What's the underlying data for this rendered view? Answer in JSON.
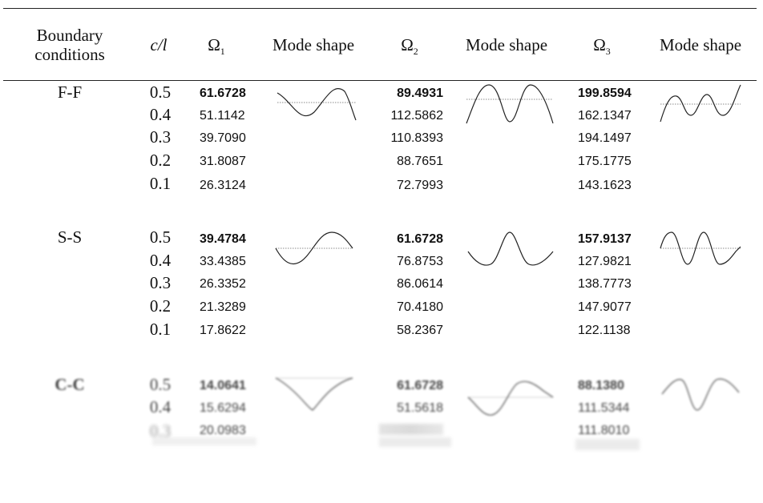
{
  "header": {
    "boundary_line1": "Boundary",
    "boundary_line2": "conditions",
    "ratio": "c/l",
    "omega1": "Ω",
    "omega1_sub": "1",
    "omega2": "Ω",
    "omega2_sub": "2",
    "omega3": "Ω",
    "omega3_sub": "3",
    "mode_shape_1": "Mode shape",
    "mode_shape_2": "Mode shape",
    "mode_shape_3": "Mode shape"
  },
  "groups": [
    {
      "bc": "F-F",
      "rows": [
        {
          "cl": "0.5",
          "o1": "61.6728",
          "o2": "89.4931",
          "o3": "199.8594"
        },
        {
          "cl": "0.4",
          "o1": "51.1142",
          "o2": "112.5862",
          "o3": "162.1347"
        },
        {
          "cl": "0.3",
          "o1": "39.7090",
          "o2": "110.8393",
          "o3": "194.1497"
        },
        {
          "cl": "0.2",
          "o1": "31.8087",
          "o2": "88.7651",
          "o3": "175.1775"
        },
        {
          "cl": "0.1",
          "o1": "26.3124",
          "o2": "72.7993",
          "o3": "143.1623"
        }
      ]
    },
    {
      "bc": "S-S",
      "rows": [
        {
          "cl": "0.5",
          "o1": "39.4784",
          "o2": "61.6728",
          "o3": "157.9137"
        },
        {
          "cl": "0.4",
          "o1": "33.4385",
          "o2": "76.8753",
          "o3": "127.9821"
        },
        {
          "cl": "0.3",
          "o1": "26.3352",
          "o2": "86.0614",
          "o3": "138.7773"
        },
        {
          "cl": "0.2",
          "o1": "21.3289",
          "o2": "70.4180",
          "o3": "147.9077"
        },
        {
          "cl": "0.1",
          "o1": "17.8622",
          "o2": "58.2367",
          "o3": "122.1138"
        }
      ]
    },
    {
      "bc": "C-C",
      "rows": [
        {
          "cl": "0.5",
          "o1": "14.0641",
          "o2": "61.6728",
          "o3": "88.1380"
        },
        {
          "cl": "0.4",
          "o1": "15.6294",
          "o2": "51.5618",
          "o3": "111.5344"
        },
        {
          "cl": "0.3",
          "o1": "20.0983",
          "o2": "",
          "o3": "111.8010"
        }
      ]
    }
  ]
}
